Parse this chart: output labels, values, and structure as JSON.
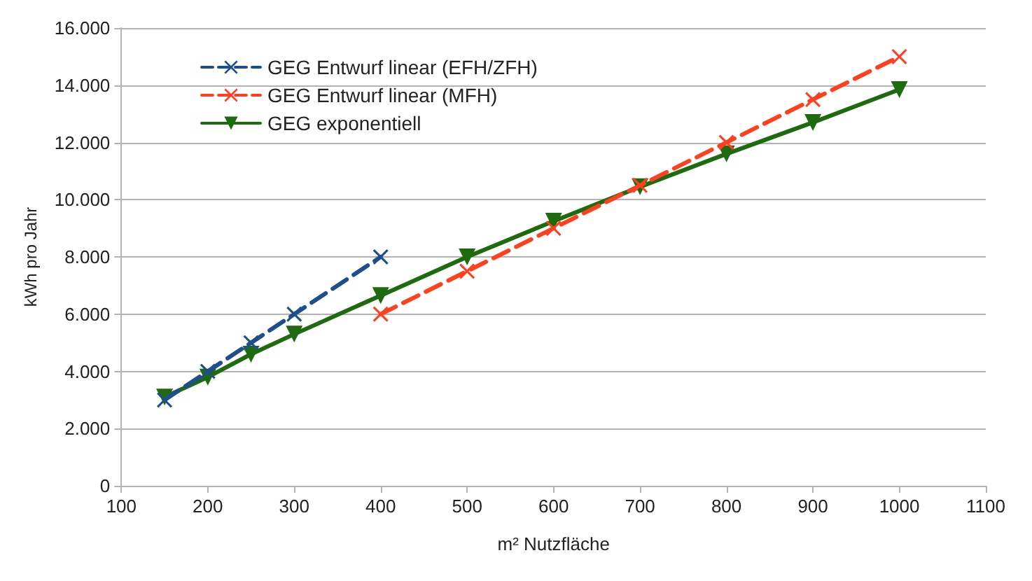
{
  "chart_data": {
    "type": "line",
    "xlabel": "m² Nutzfläche",
    "ylabel": "kWh pro Jahr",
    "xlim": [
      100,
      1100
    ],
    "xticks": [
      100,
      200,
      300,
      400,
      500,
      600,
      700,
      800,
      900,
      1000,
      1100
    ],
    "ylim": [
      0,
      16000
    ],
    "yticks": [
      0,
      {
        "value": 2000,
        "label": "2.000"
      },
      {
        "value": 4000,
        "label": "4.000"
      },
      {
        "value": 6000,
        "label": "6.000"
      },
      {
        "value": 8000,
        "label": "8.000"
      },
      {
        "value": 10000,
        "label": "10.000"
      },
      {
        "value": 12000,
        "label": "12.000"
      },
      {
        "value": 14000,
        "label": "14.000"
      },
      {
        "value": 16000,
        "label": "16.000"
      }
    ],
    "grid": "y",
    "legend": "top left",
    "series": [
      {
        "name": "GEG Entwurf linear (EFH/ZFH)",
        "color": "#1f4e8c",
        "line_style": "dashed",
        "marker": "cross",
        "x": [
          150,
          200,
          250,
          300,
          400
        ],
        "values": [
          3000,
          4000,
          5000,
          6000,
          8000
        ]
      },
      {
        "name": "GEG Entwurf linear (MFH)",
        "color": "#ff4020",
        "line_style": "dashed",
        "marker": "cross",
        "x": [
          400,
          500,
          600,
          700,
          800,
          900,
          1000
        ],
        "values": [
          6000,
          7500,
          9000,
          10500,
          12000,
          13500,
          15000
        ]
      },
      {
        "name": "GEG exponentiell",
        "color": "#1e6b0f",
        "line_style": "solid",
        "marker": "triangle",
        "x": [
          150,
          200,
          250,
          300,
          400,
          500,
          600,
          700,
          800,
          900,
          1000
        ],
        "values": [
          3100,
          3800,
          4600,
          5300,
          6650,
          8000,
          9250,
          10450,
          11600,
          12700,
          13850
        ]
      }
    ]
  }
}
